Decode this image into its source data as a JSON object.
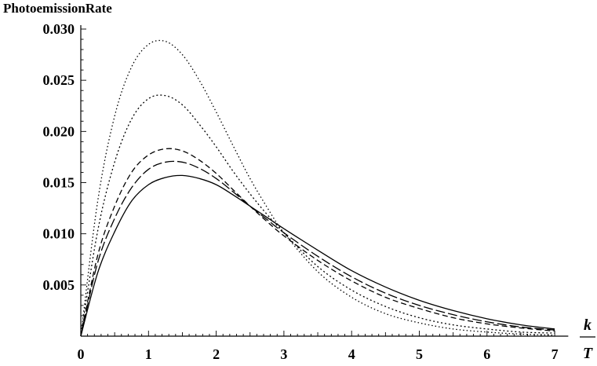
{
  "chart_data": {
    "type": "line",
    "title": "",
    "ylabel": "PhotoemissionRate",
    "xlabel": {
      "numerator": "k",
      "denominator": "T"
    },
    "xlim": [
      0,
      7.2
    ],
    "ylim": [
      0,
      0.03
    ],
    "x_ticks": [
      "0",
      "1",
      "2",
      "3",
      "4",
      "5",
      "6",
      "7"
    ],
    "y_ticks": [
      "0.005",
      "0.010",
      "0.015",
      "0.020",
      "0.025",
      "0.030"
    ],
    "grid": false,
    "legend": "none",
    "series": [
      {
        "style": "solid",
        "x": [
          0,
          0.25,
          0.5,
          0.75,
          1.0,
          1.25,
          1.5,
          1.75,
          2.0,
          2.25,
          2.5,
          2.75,
          3.0,
          3.5,
          4.0,
          4.5,
          5.0,
          5.5,
          6.0,
          6.5,
          7.0
        ],
        "y": [
          0,
          0.0062,
          0.0102,
          0.0132,
          0.0148,
          0.0155,
          0.0157,
          0.0154,
          0.0148,
          0.0138,
          0.0127,
          0.0116,
          0.0105,
          0.0084,
          0.0064,
          0.0048,
          0.0035,
          0.0025,
          0.0017,
          0.0011,
          0.0007
        ]
      },
      {
        "style": "long-dash",
        "x": [
          0,
          0.25,
          0.5,
          0.75,
          1.0,
          1.25,
          1.5,
          1.75,
          2.0,
          2.25,
          2.5,
          2.75,
          3.0,
          3.5,
          4.0,
          4.5,
          5.0,
          5.5,
          6.0,
          6.5,
          7.0
        ],
        "y": [
          0,
          0.0072,
          0.0115,
          0.0145,
          0.0163,
          0.017,
          0.017,
          0.0164,
          0.0154,
          0.0141,
          0.0127,
          0.0114,
          0.0101,
          0.0078,
          0.0058,
          0.0042,
          0.003,
          0.0021,
          0.0014,
          0.0009,
          0.0006
        ]
      },
      {
        "style": "dash",
        "x": [
          0,
          0.25,
          0.5,
          0.75,
          1.0,
          1.25,
          1.5,
          1.75,
          2.0,
          2.25,
          2.5,
          2.75,
          3.0,
          3.5,
          4.0,
          4.5,
          5.0,
          5.5,
          6.0,
          6.5,
          7.0
        ],
        "y": [
          0,
          0.0079,
          0.0127,
          0.016,
          0.0177,
          0.0183,
          0.0181,
          0.0172,
          0.0159,
          0.0143,
          0.0127,
          0.0112,
          0.0098,
          0.0074,
          0.0054,
          0.0038,
          0.0027,
          0.0018,
          0.0012,
          0.0008,
          0.0005
        ]
      },
      {
        "style": "dot",
        "x": [
          0,
          0.25,
          0.5,
          0.75,
          1.0,
          1.25,
          1.5,
          1.75,
          2.0,
          2.25,
          2.5,
          2.75,
          3.0,
          3.5,
          4.0,
          4.5,
          5.0,
          5.5,
          6.0,
          6.5,
          7.0
        ],
        "y": [
          0,
          0.0103,
          0.017,
          0.0212,
          0.0232,
          0.0235,
          0.0226,
          0.0207,
          0.0185,
          0.0161,
          0.0139,
          0.0119,
          0.0101,
          0.0068,
          0.0045,
          0.0029,
          0.0018,
          0.0011,
          0.0007,
          0.0004,
          0.0003
        ]
      },
      {
        "style": "fine-dot",
        "x": [
          0,
          0.25,
          0.5,
          0.75,
          1.0,
          1.25,
          1.5,
          1.75,
          2.0,
          2.25,
          2.5,
          2.75,
          3.0,
          3.5,
          4.0,
          4.5,
          5.0,
          5.5,
          6.0,
          6.5,
          7.0
        ],
        "y": [
          0,
          0.0132,
          0.0215,
          0.0263,
          0.0285,
          0.0288,
          0.0275,
          0.025,
          0.0219,
          0.0186,
          0.0154,
          0.0126,
          0.0101,
          0.0063,
          0.0038,
          0.0022,
          0.0013,
          0.0007,
          0.0004,
          0.0002,
          0.0001
        ]
      }
    ]
  }
}
